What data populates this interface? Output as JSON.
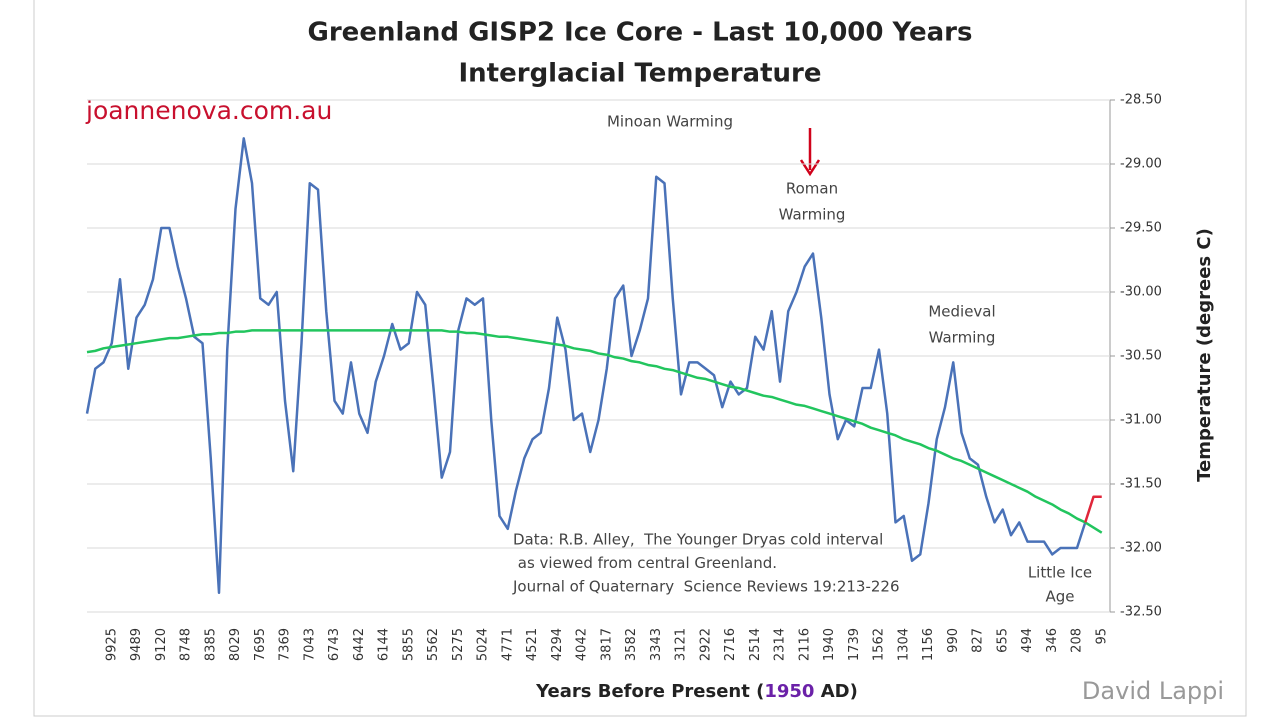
{
  "chart_data": {
    "type": "line",
    "title": [
      "Greenland GISP2 Ice Core - Last 10,000 Years",
      "Interglacial Temperature"
    ],
    "watermark": "joannenova.com.au",
    "xlabel": [
      "Years Before Present (",
      "1950",
      " AD)"
    ],
    "ylabel": "Temperature (degrees C)",
    "credit": "David Lappi",
    "annotations": [
      [
        "Minoan Warming"
      ],
      [
        "Roman",
        "Warming"
      ],
      [
        "Medieval",
        "Warming"
      ],
      [
        "Little Ice",
        "Age"
      ],
      [
        "Data: R.B. Alley,  The Younger Dryas cold interval",
        " as viewed from central Greenland.",
        "Journal of Quaternary  Science Reviews 19:213-226"
      ]
    ],
    "categories": [
      null,
      null,
      null,
      "9925",
      null,
      null,
      "9489",
      null,
      null,
      "9120",
      null,
      null,
      "8748",
      null,
      null,
      "8385",
      null,
      null,
      "8029",
      null,
      null,
      "7695",
      null,
      null,
      "7369",
      null,
      null,
      "7043",
      null,
      null,
      "6743",
      null,
      null,
      "6442",
      null,
      null,
      "6144",
      null,
      null,
      "5855",
      null,
      null,
      "5562",
      null,
      null,
      "5275",
      null,
      null,
      "5024",
      null,
      null,
      "4771",
      null,
      null,
      "4521",
      null,
      null,
      "4294",
      null,
      null,
      "4042",
      null,
      null,
      "3817",
      null,
      null,
      "3582",
      null,
      null,
      "3343",
      null,
      null,
      "3121",
      null,
      null,
      "2922",
      null,
      null,
      "2716",
      null,
      null,
      "2514",
      null,
      null,
      "2314",
      null,
      null,
      "2116",
      null,
      null,
      "1940",
      null,
      null,
      "1739",
      null,
      null,
      "1562",
      null,
      null,
      "1304",
      null,
      null,
      "1156",
      null,
      null,
      "990",
      null,
      null,
      "827",
      null,
      null,
      "655",
      null,
      null,
      "494",
      null,
      null,
      "346",
      null,
      null,
      "208",
      null,
      null,
      "95"
    ],
    "series": [
      {
        "color": "#4a72b8",
        "values": [
          -30.95,
          -30.6,
          -30.55,
          -30.4,
          -29.9,
          -30.6,
          -30.2,
          -30.1,
          -29.9,
          -29.5,
          -29.5,
          -29.8,
          -30.05,
          -30.35,
          -30.4,
          -31.3,
          -32.35,
          -30.45,
          -29.35,
          -28.8,
          -29.15,
          -30.05,
          -30.1,
          -30.0,
          -30.85,
          -31.4,
          -30.4,
          -29.15,
          -29.2,
          -30.15,
          -30.85,
          -30.95,
          -30.55,
          -30.95,
          -31.1,
          -30.7,
          -30.5,
          -30.25,
          -30.45,
          -30.4,
          -30.0,
          -30.1,
          -30.75,
          -31.45,
          -31.25,
          -30.3,
          -30.05,
          -30.1,
          -30.05,
          -31.0,
          -31.75,
          -31.85,
          -31.55,
          -31.3,
          -31.15,
          -31.1,
          -30.75,
          -30.2,
          -30.45,
          -31.0,
          -30.95,
          -31.25,
          -31.0,
          -30.6,
          -30.05,
          -29.95,
          -30.5,
          -30.3,
          -30.05,
          -29.1,
          -29.15,
          -30.05,
          -30.8,
          -30.55,
          -30.55,
          -30.6,
          -30.65,
          -30.9,
          -30.7,
          -30.8,
          -30.75,
          -30.35,
          -30.45,
          -30.15,
          -30.7,
          -30.15,
          -30.0,
          -29.8,
          -29.7,
          -30.2,
          -30.8,
          -31.15,
          -31.0,
          -31.05,
          -30.75,
          -30.75,
          -30.45,
          -30.95,
          -31.8,
          -31.75,
          -32.1,
          -32.05,
          -31.65,
          -31.15,
          -30.9,
          -30.55,
          -31.1,
          -31.3,
          -31.35,
          -31.6,
          -31.8,
          -31.7,
          -31.9,
          -31.8,
          -31.95,
          -31.95,
          -31.95,
          -32.05,
          -32.0,
          -32.0,
          -32.0,
          -31.8,
          null,
          null
        ]
      },
      {
        "color": "#22c55e",
        "values": [
          -30.47,
          -30.46,
          -30.44,
          -30.43,
          -30.42,
          -30.41,
          -30.4,
          -30.39,
          -30.38,
          -30.37,
          -30.36,
          -30.36,
          -30.35,
          -30.34,
          -30.33,
          -30.33,
          -30.32,
          -30.32,
          -30.31,
          -30.31,
          -30.3,
          -30.3,
          -30.3,
          -30.3,
          -30.3,
          -30.3,
          -30.3,
          -30.3,
          -30.3,
          -30.3,
          -30.3,
          -30.3,
          -30.3,
          -30.3,
          -30.3,
          -30.3,
          -30.3,
          -30.3,
          -30.3,
          -30.3,
          -30.3,
          -30.3,
          -30.3,
          -30.3,
          -30.31,
          -30.31,
          -30.32,
          -30.32,
          -30.33,
          -30.34,
          -30.35,
          -30.35,
          -30.36,
          -30.37,
          -30.38,
          -30.39,
          -30.4,
          -30.41,
          -30.42,
          -30.44,
          -30.45,
          -30.46,
          -30.48,
          -30.49,
          -30.51,
          -30.52,
          -30.54,
          -30.55,
          -30.57,
          -30.58,
          -30.6,
          -30.61,
          -30.63,
          -30.65,
          -30.67,
          -30.68,
          -30.7,
          -30.72,
          -30.74,
          -30.75,
          -30.77,
          -30.79,
          -30.81,
          -30.82,
          -30.84,
          -30.86,
          -30.88,
          -30.89,
          -30.91,
          -30.93,
          -30.95,
          -30.97,
          -30.99,
          -31.01,
          -31.03,
          -31.06,
          -31.08,
          -31.1,
          -31.12,
          -31.15,
          -31.17,
          -31.19,
          -31.22,
          -31.24,
          -31.27,
          -31.3,
          -31.32,
          -31.35,
          -31.38,
          -31.41,
          -31.44,
          -31.47,
          -31.5,
          -31.53,
          -31.56,
          -31.6,
          -31.63,
          -31.66,
          -31.7,
          -31.73,
          -31.77,
          -31.8,
          -31.84,
          -31.88
        ]
      },
      {
        "color": "#e0263a",
        "values": [
          null,
          null,
          null,
          null,
          null,
          null,
          null,
          null,
          null,
          null,
          null,
          null,
          null,
          null,
          null,
          null,
          null,
          null,
          null,
          null,
          null,
          null,
          null,
          null,
          null,
          null,
          null,
          null,
          null,
          null,
          null,
          null,
          null,
          null,
          null,
          null,
          null,
          null,
          null,
          null,
          null,
          null,
          null,
          null,
          null,
          null,
          null,
          null,
          null,
          null,
          null,
          null,
          null,
          null,
          null,
          null,
          null,
          null,
          null,
          null,
          null,
          null,
          null,
          null,
          null,
          null,
          null,
          null,
          null,
          null,
          null,
          null,
          null,
          null,
          null,
          null,
          null,
          null,
          null,
          null,
          null,
          null,
          null,
          null,
          null,
          null,
          null,
          null,
          null,
          null,
          null,
          null,
          null,
          null,
          null,
          null,
          null,
          null,
          null,
          null,
          null,
          null,
          null,
          null,
          null,
          null,
          null,
          null,
          null,
          null,
          null,
          null,
          null,
          null,
          null,
          null,
          null,
          null,
          null,
          null,
          null,
          -31.8,
          -31.6,
          -31.6
        ]
      }
    ],
    "ylim": [
      -32.5,
      -28.5
    ],
    "yticks": [
      {
        "value": -28.5,
        "label": "-28.50"
      },
      {
        "value": -29,
        "label": "-29.00"
      },
      {
        "value": -29.5,
        "label": "-29.50"
      },
      {
        "value": -30,
        "label": "-30.00"
      },
      {
        "value": -30.5,
        "label": "-30.50"
      },
      {
        "value": -31,
        "label": "-31.00"
      },
      {
        "value": -31.5,
        "label": "-31.50"
      },
      {
        "value": -32,
        "label": "-32.00"
      },
      {
        "value": -32.5,
        "label": "-32.50"
      }
    ],
    "grid": true,
    "y_axis_side": "right"
  }
}
